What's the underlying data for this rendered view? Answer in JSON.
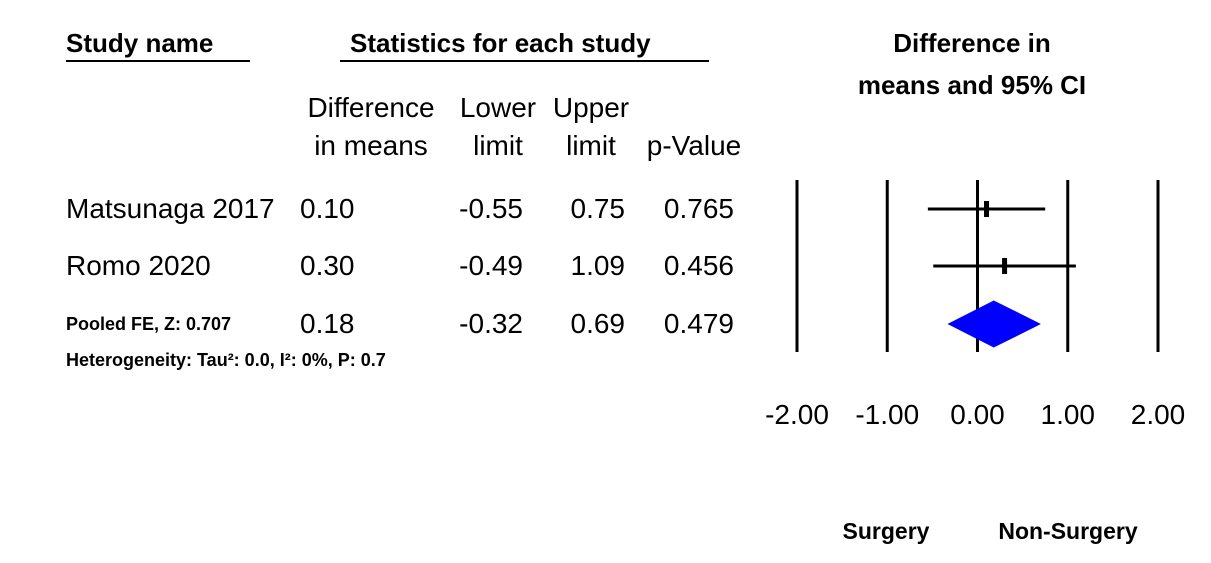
{
  "headers": {
    "study_name": "Study name",
    "statistics": "Statistics for each study",
    "plot_title_line1": "Difference in",
    "plot_title_line2": "means and 95% CI"
  },
  "columns": {
    "diff": [
      "Difference",
      "in means"
    ],
    "lower": [
      "Lower",
      "limit"
    ],
    "upper": [
      "Upper",
      "limit"
    ],
    "p": [
      "",
      "p-Value"
    ]
  },
  "rows": [
    {
      "study": "Matsunaga 2017",
      "diff": "0.10",
      "lower": "-0.55",
      "upper": "0.75",
      "p": "0.765"
    },
    {
      "study": "Romo 2020",
      "diff": "0.30",
      "lower": "-0.49",
      "upper": "1.09",
      "p": "0.456"
    },
    {
      "study": "Pooled FE, Z: 0.707",
      "diff": "0.18",
      "lower": "-0.32",
      "upper": "0.69",
      "p": "0.479"
    }
  ],
  "heterogeneity": "Heterogeneity: Tau²: 0.0, I²: 0%, P: 0.7",
  "favours": {
    "left": "Surgery",
    "right": "Non-Surgery"
  },
  "chart_data": {
    "type": "forest",
    "xlim": [
      -2.0,
      2.0
    ],
    "x_ticks": [
      -2.0,
      -1.0,
      0.0,
      1.0,
      2.0
    ],
    "x_tick_labels": [
      "-2.00",
      "-1.00",
      "0.00",
      "1.00",
      "2.00"
    ],
    "studies": [
      {
        "name": "Matsunaga 2017",
        "estimate": 0.1,
        "lower": -0.55,
        "upper": 0.75
      },
      {
        "name": "Romo 2020",
        "estimate": 0.3,
        "lower": -0.49,
        "upper": 1.09
      }
    ],
    "pooled": {
      "name": "Pooled FE",
      "estimate": 0.18,
      "lower": -0.32,
      "upper": 0.69
    },
    "diamond_color": "#0000ff"
  }
}
